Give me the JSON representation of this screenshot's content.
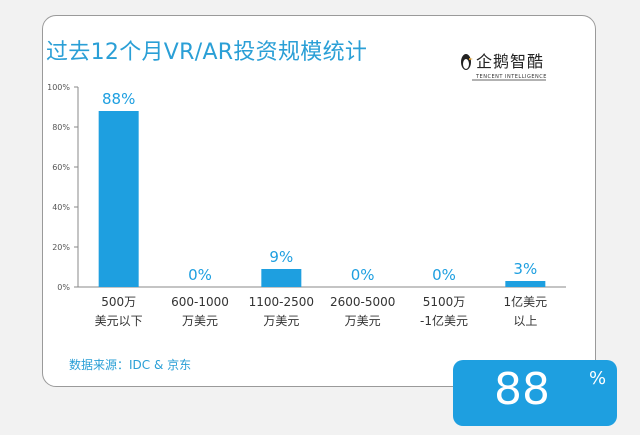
{
  "title": "过去12个月VR/AR投资规模统计",
  "logo": {
    "text": "企鹅智酷",
    "subtitle": "TENCENT INTELLIGENCE"
  },
  "source": "数据来源：IDC & 京东",
  "badge": {
    "value": "88",
    "unit": "%"
  },
  "colors": {
    "bar": "#1e9fe0",
    "title": "#2a9fd6",
    "axis": "#555555"
  },
  "chart_data": {
    "type": "bar",
    "title": "过去12个月VR/AR投资规模统计",
    "categories": [
      [
        "500万",
        "美元以下"
      ],
      [
        "600-1000",
        "万美元"
      ],
      [
        "1100-2500",
        "万美元"
      ],
      [
        "2600-5000",
        "万美元"
      ],
      [
        "5100万",
        "-1亿美元"
      ],
      [
        "1亿美元",
        "以上"
      ]
    ],
    "values": [
      88,
      0,
      9,
      0,
      0,
      3
    ],
    "data_labels": [
      "88%",
      "0%",
      "9%",
      "0%",
      "0%",
      "3%"
    ],
    "ylim": [
      0,
      100
    ],
    "yticks": [
      "0%",
      "20%",
      "40%",
      "60%",
      "80%",
      "100%"
    ],
    "ytick_values": [
      0,
      20,
      40,
      60,
      80,
      100
    ],
    "grid": false
  }
}
